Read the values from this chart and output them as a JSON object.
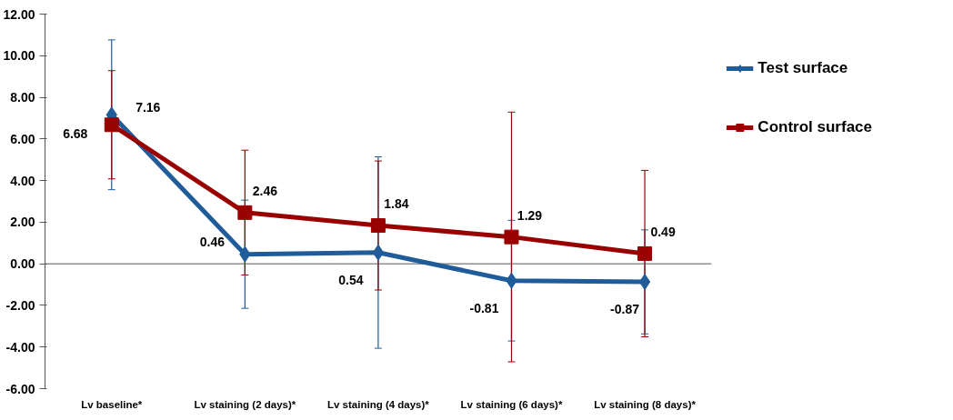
{
  "chart_data": {
    "type": "line",
    "categories": [
      "Lv baseline*",
      "Lv staining (2 days)*",
      "Lv staining (4 days)*",
      "Lv staining (6 days)*",
      "Lv staining (8 days)*"
    ],
    "series": [
      {
        "name": "Test surface",
        "color": "#1f5c99",
        "marker": "diamond",
        "values": [
          7.16,
          0.46,
          0.54,
          -0.81,
          -0.87
        ],
        "errors": [
          3.6,
          2.6,
          4.6,
          2.9,
          2.5
        ]
      },
      {
        "name": "Control surface",
        "color": "#990000",
        "marker": "square",
        "values": [
          6.68,
          2.46,
          1.84,
          1.29,
          0.49
        ],
        "errors": [
          2.6,
          3.0,
          3.1,
          6.0,
          4.0
        ]
      }
    ],
    "ylim": [
      -6,
      12
    ],
    "yticks": [
      {
        "value": -6,
        "label": "-6.00"
      },
      {
        "value": -4,
        "label": "-4.00"
      },
      {
        "value": -2,
        "label": "-2.00"
      },
      {
        "value": 0,
        "label": "0.00"
      },
      {
        "value": 2,
        "label": "2.00"
      },
      {
        "value": 4,
        "label": "4.00"
      },
      {
        "value": 6,
        "label": "6.00"
      },
      {
        "value": 8,
        "label": "8.00"
      },
      {
        "value": 10,
        "label": "10.00"
      },
      {
        "value": 12,
        "label": "12.00"
      }
    ],
    "ref_lines": [
      {
        "axis": "y",
        "value": 0,
        "color": "#555555"
      }
    ],
    "data_labels": true,
    "grid": false,
    "legend": "right",
    "line_style": "solid"
  }
}
